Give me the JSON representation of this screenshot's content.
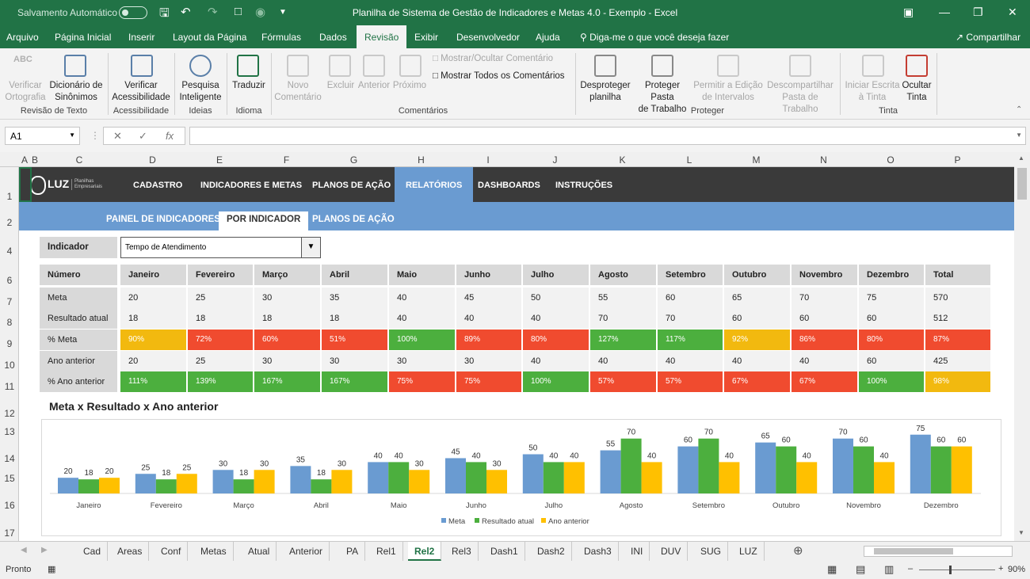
{
  "titlebar": {
    "autosave": "Salvamento Automático",
    "title": "Planilha de Sistema de Gestão de Indicadores e Metas 4.0 - Exemplo  -  Excel"
  },
  "ribbon_tabs": [
    "Arquivo",
    "Página Inicial",
    "Inserir",
    "Layout da Página",
    "Fórmulas",
    "Dados",
    "Revisão",
    "Exibir",
    "Desenvolvedor",
    "Ajuda"
  ],
  "active_tab": "Revisão",
  "tell_me": "Diga-me o que você deseja fazer",
  "share": "Compartilhar",
  "ribbon": {
    "verificar_ortografia": [
      "Verificar",
      "Ortografia"
    ],
    "dicionario": [
      "Dicionário de",
      "Sinônimos"
    ],
    "group_revisao": "Revisão de Texto",
    "verificar_acess": [
      "Verificar",
      "Acessibilidade"
    ],
    "group_acess": "Acessibilidade",
    "pesquisa": [
      "Pesquisa",
      "Inteligente"
    ],
    "group_ideias": "Ideias",
    "traduzir": "Traduzir",
    "group_idioma": "Idioma",
    "novo_comentario": [
      "Novo",
      "Comentário"
    ],
    "excluir": "Excluir",
    "anterior": "Anterior",
    "proximo": "Próximo",
    "mostrar_ocultar": "Mostrar/Ocultar Comentário",
    "mostrar_todos": "Mostrar Todos os Comentários",
    "group_comentarios": "Comentários",
    "desproteger": [
      "Desproteger",
      "planilha"
    ],
    "proteger_pasta": [
      "Proteger Pasta",
      "de Trabalho"
    ],
    "permitir": [
      "Permitir a Edição",
      "de Intervalos"
    ],
    "descompartilhar": [
      "Descompartilhar",
      "Pasta de Trabalho"
    ],
    "group_proteger": "Proteger",
    "iniciar_escrita": [
      "Iniciar Escrita",
      "à Tinta"
    ],
    "ocultar_tinta": [
      "Ocultar",
      "Tinta"
    ],
    "group_tinta": "Tinta"
  },
  "namebox": "A1",
  "fx": "fx",
  "columns": [
    "A",
    "B",
    "C",
    "D",
    "E",
    "F",
    "G",
    "H",
    "I",
    "J",
    "K",
    "L",
    "M",
    "N",
    "O",
    "P"
  ],
  "rows": [
    "1",
    "2",
    "4",
    "6",
    "7",
    "8",
    "9",
    "10",
    "11",
    "12",
    "13",
    "14",
    "15",
    "16",
    "17"
  ],
  "nav": {
    "logo": "LUZ",
    "logo_sub": [
      "Planilhas",
      "Empresariais"
    ],
    "items": [
      "CADASTRO",
      "INDICADORES E METAS",
      "PLANOS DE AÇÃO",
      "RELATÓRIOS",
      "DASHBOARDS",
      "INSTRUÇÕES"
    ],
    "active": "RELATÓRIOS",
    "sub_items": [
      "PAINEL DE INDICADORES",
      "POR INDICADOR",
      "PLANOS DE AÇÃO"
    ],
    "sub_active": "POR INDICADOR"
  },
  "indicator": {
    "label": "Indicador",
    "value": "Tempo de Atendimento"
  },
  "table": {
    "header": [
      "Número",
      "Janeiro",
      "Fevereiro",
      "Março",
      "Abril",
      "Maio",
      "Junho",
      "Julho",
      "Agosto",
      "Setembro",
      "Outubro",
      "Novembro",
      "Dezembro",
      "Total"
    ],
    "rows": [
      {
        "label": "Meta",
        "values": [
          "20",
          "25",
          "30",
          "35",
          "40",
          "45",
          "50",
          "55",
          "60",
          "65",
          "70",
          "75",
          "570"
        ]
      },
      {
        "label": "Resultado atual",
        "values": [
          "18",
          "18",
          "18",
          "18",
          "40",
          "40",
          "40",
          "70",
          "70",
          "60",
          "60",
          "60",
          "512"
        ]
      },
      {
        "label": "% Meta",
        "values": [
          "90%",
          "72%",
          "60%",
          "51%",
          "100%",
          "89%",
          "80%",
          "127%",
          "117%",
          "92%",
          "86%",
          "80%",
          "87%"
        ],
        "colors": [
          "#f2b90f",
          "#f04b2f",
          "#f04b2f",
          "#f04b2f",
          "#4caf3e",
          "#f04b2f",
          "#f04b2f",
          "#4caf3e",
          "#4caf3e",
          "#f2b90f",
          "#f04b2f",
          "#f04b2f",
          "#f04b2f"
        ]
      },
      {
        "label": "Ano anterior",
        "values": [
          "20",
          "25",
          "30",
          "30",
          "30",
          "30",
          "40",
          "40",
          "40",
          "40",
          "40",
          "60",
          "425"
        ]
      },
      {
        "label": "% Ano anterior",
        "values": [
          "111%",
          "139%",
          "167%",
          "167%",
          "75%",
          "75%",
          "100%",
          "57%",
          "57%",
          "67%",
          "67%",
          "100%",
          "98%"
        ],
        "colors": [
          "#4caf3e",
          "#4caf3e",
          "#4caf3e",
          "#4caf3e",
          "#f04b2f",
          "#f04b2f",
          "#4caf3e",
          "#f04b2f",
          "#f04b2f",
          "#f04b2f",
          "#f04b2f",
          "#4caf3e",
          "#f2b90f"
        ]
      }
    ]
  },
  "chart_data": {
    "type": "bar",
    "title": "Meta x Resultado x Ano anterior",
    "categories": [
      "Janeiro",
      "Fevereiro",
      "Março",
      "Abril",
      "Maio",
      "Junho",
      "Julho",
      "Agosto",
      "Setembro",
      "Outubro",
      "Novembro",
      "Dezembro"
    ],
    "series": [
      {
        "name": "Meta",
        "color": "#6a9bd1",
        "values": [
          20,
          25,
          30,
          35,
          40,
          45,
          50,
          55,
          60,
          65,
          70,
          75
        ]
      },
      {
        "name": "Resultado atual",
        "color": "#4caf3e",
        "values": [
          18,
          18,
          18,
          18,
          40,
          40,
          40,
          70,
          70,
          60,
          60,
          60
        ]
      },
      {
        "name": "Ano anterior",
        "color": "#ffc000",
        "values": [
          20,
          25,
          30,
          30,
          30,
          30,
          40,
          40,
          40,
          40,
          40,
          60
        ]
      }
    ],
    "ylim": [
      0,
      80
    ],
    "legend": "bottom"
  },
  "sheets": [
    "Cad",
    "Areas",
    "Conf",
    "Metas",
    "Atual",
    "Anterior",
    "PA",
    "Rel1",
    "Rel2",
    "Rel3",
    "Dash1",
    "Dash2",
    "Dash3",
    "INI",
    "DUV",
    "SUG",
    "LUZ"
  ],
  "active_sheet": "Rel2",
  "status": {
    "ready": "Pronto",
    "zoom": "90%"
  }
}
